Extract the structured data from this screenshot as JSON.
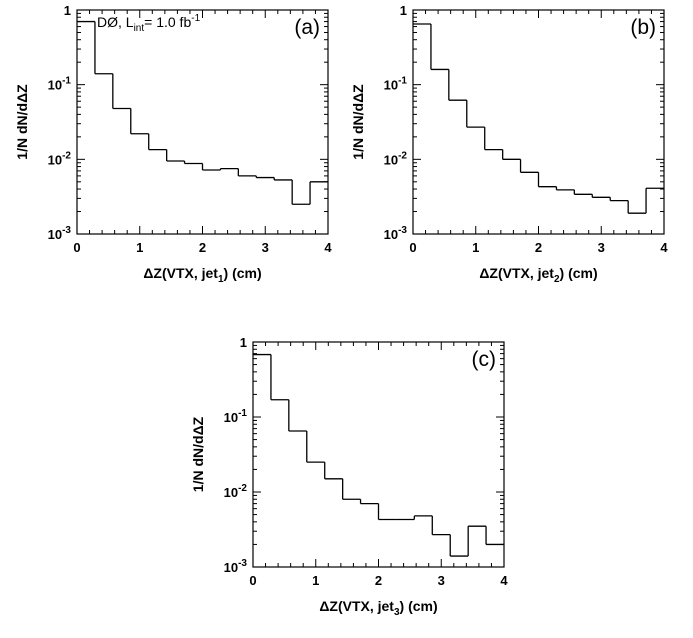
{
  "chart_data": [
    {
      "type": "histogram",
      "panel_label": "(a)",
      "annotation": {
        "experiment": "DØ",
        "lumi_symbol": "L",
        "lumi_sub": "int",
        "lumi_value": "= 1.0 fb",
        "lumi_sup": "-1"
      },
      "xlabel": {
        "main": "ΔZ(VTX, jet",
        "sub": "1",
        "tail": ") (cm)"
      },
      "ylabel": "1/N dN/dΔZ",
      "xlim": [
        0,
        4
      ],
      "ylim": [
        0.001,
        1
      ],
      "yscale": "log",
      "x_ticks": [
        "0",
        "1",
        "2",
        "3",
        "4"
      ],
      "y_ticks": [
        {
          "base": "1",
          "exp": ""
        },
        {
          "base": "10",
          "exp": "-1"
        },
        {
          "base": "10",
          "exp": "-2"
        },
        {
          "base": "10",
          "exp": "-3"
        }
      ],
      "bin_edges": [
        0,
        0.286,
        0.571,
        0.857,
        1.143,
        1.429,
        1.714,
        2.0,
        2.286,
        2.571,
        2.857,
        3.143,
        3.429,
        3.714,
        4.0
      ],
      "values": [
        0.7,
        0.14,
        0.048,
        0.022,
        0.0135,
        0.0095,
        0.0088,
        0.0072,
        0.0075,
        0.006,
        0.0057,
        0.0053,
        0.0025,
        0.005
      ]
    },
    {
      "type": "histogram",
      "panel_label": "(b)",
      "xlabel": {
        "main": "ΔZ(VTX, jet",
        "sub": "2",
        "tail": ") (cm)"
      },
      "ylabel": "1/N dN/dΔZ",
      "xlim": [
        0,
        4
      ],
      "ylim": [
        0.001,
        1
      ],
      "yscale": "log",
      "x_ticks": [
        "0",
        "1",
        "2",
        "3",
        "4"
      ],
      "y_ticks": [
        {
          "base": "1",
          "exp": ""
        },
        {
          "base": "10",
          "exp": "-1"
        },
        {
          "base": "10",
          "exp": "-2"
        },
        {
          "base": "10",
          "exp": "-3"
        }
      ],
      "bin_edges": [
        0,
        0.286,
        0.571,
        0.857,
        1.143,
        1.429,
        1.714,
        2.0,
        2.286,
        2.571,
        2.857,
        3.143,
        3.429,
        3.714,
        4.0
      ],
      "values": [
        0.65,
        0.16,
        0.062,
        0.027,
        0.0135,
        0.01,
        0.0067,
        0.0043,
        0.0039,
        0.0034,
        0.0031,
        0.0028,
        0.0019,
        0.0041
      ]
    },
    {
      "type": "histogram",
      "panel_label": "(c)",
      "xlabel": {
        "main": "ΔZ(VTX, jet",
        "sub": "3",
        "tail": ") (cm)"
      },
      "ylabel": "1/N dN/dΔZ",
      "xlim": [
        0,
        4
      ],
      "ylim": [
        0.001,
        1
      ],
      "yscale": "log",
      "x_ticks": [
        "0",
        "1",
        "2",
        "3",
        "4"
      ],
      "y_ticks": [
        {
          "base": "1",
          "exp": ""
        },
        {
          "base": "10",
          "exp": "-1"
        },
        {
          "base": "10",
          "exp": "-2"
        },
        {
          "base": "10",
          "exp": "-3"
        }
      ],
      "bin_edges": [
        0,
        0.286,
        0.571,
        0.857,
        1.143,
        1.429,
        1.714,
        2.0,
        2.286,
        2.571,
        2.857,
        3.143,
        3.429,
        3.714,
        4.0
      ],
      "values": [
        0.68,
        0.17,
        0.065,
        0.025,
        0.015,
        0.008,
        0.007,
        0.0043,
        0.0043,
        0.0048,
        0.0027,
        0.0014,
        0.0035,
        0.002
      ]
    }
  ]
}
